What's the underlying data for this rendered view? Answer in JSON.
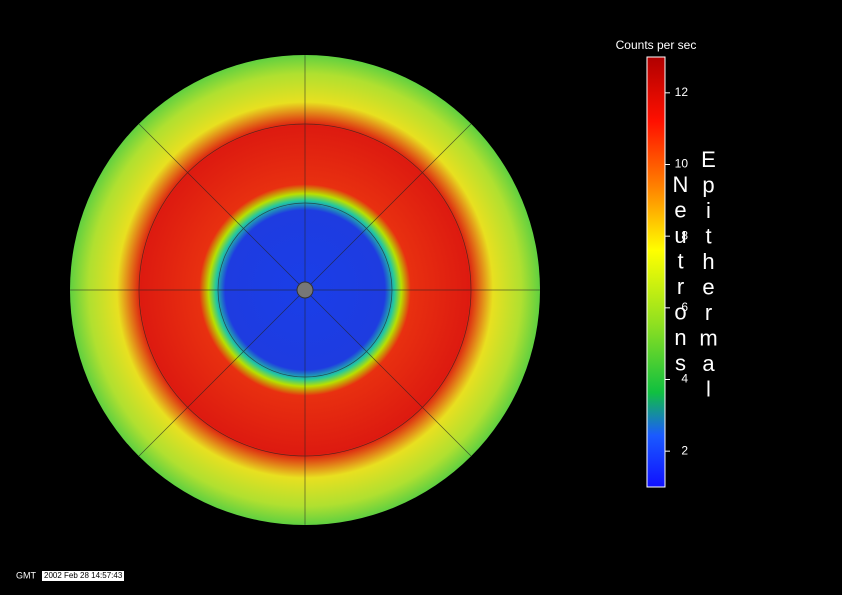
{
  "colorbar": {
    "title": "Counts per sec",
    "label": "Epithermal Neutrons",
    "lim": [
      1,
      13
    ],
    "ticks": [
      2,
      4,
      6,
      8,
      10,
      12
    ]
  },
  "timestamp": {
    "label": "GMT",
    "text": "2002 Feb 28 14:57:43"
  }
}
